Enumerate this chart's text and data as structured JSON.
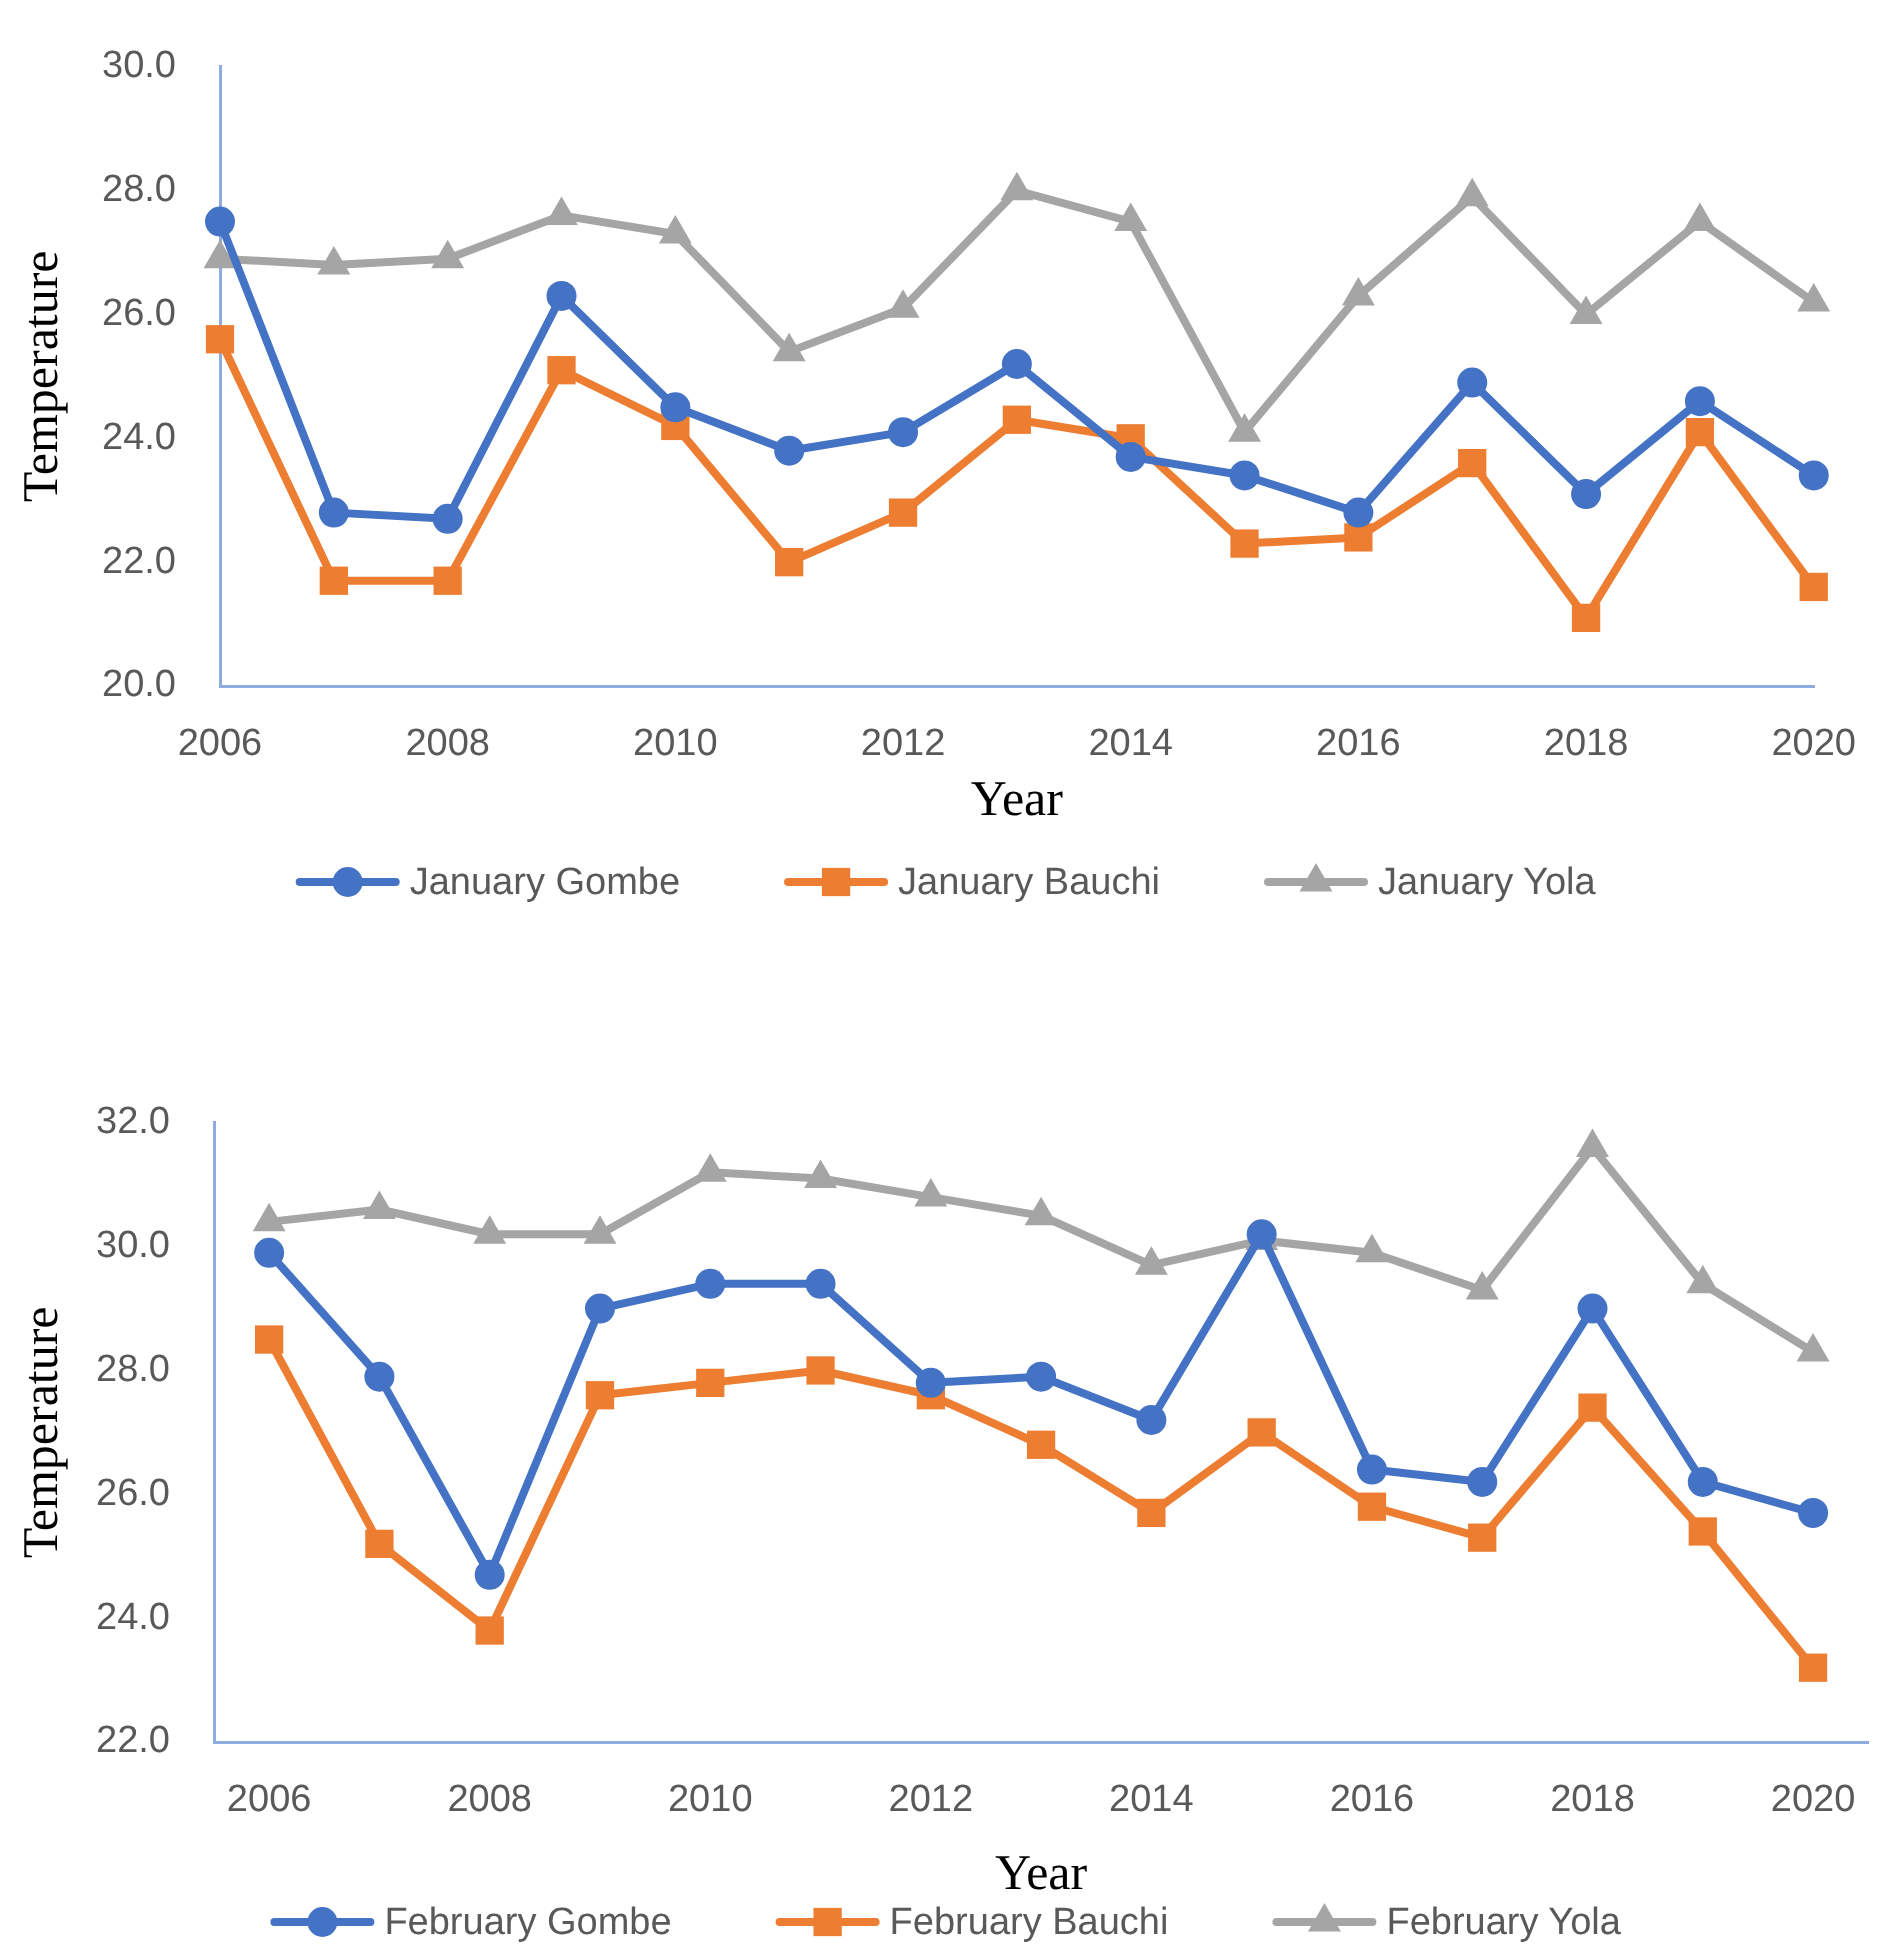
{
  "chart_data": [
    {
      "type": "line",
      "xlabel": "Year",
      "ylabel": "Temperature",
      "x": [
        2006,
        2007,
        2008,
        2009,
        2010,
        2011,
        2012,
        2013,
        2014,
        2015,
        2016,
        2017,
        2018,
        2019,
        2020
      ],
      "xlim": [
        2006,
        2020
      ],
      "xticks": [
        2006,
        2008,
        2010,
        2012,
        2014,
        2016,
        2018,
        2020
      ],
      "ylim": [
        20,
        30
      ],
      "yticks": [
        {
          "value": 20,
          "label": "20.0"
        },
        {
          "value": 22,
          "label": "22.0"
        },
        {
          "value": 24,
          "label": "24.0"
        },
        {
          "value": 26,
          "label": "26.0"
        },
        {
          "value": 28,
          "label": "28.0"
        },
        {
          "value": 30,
          "label": "30.0"
        }
      ],
      "grid": false,
      "legend": "bottom",
      "line_style": "solid",
      "series": [
        {
          "name": "January Gombe",
          "color": "#4472c4",
          "marker": "circle",
          "values": [
            27.5,
            22.8,
            22.7,
            26.3,
            24.5,
            23.8,
            24.1,
            25.2,
            23.7,
            23.4,
            22.8,
            24.9,
            23.1,
            24.6,
            23.4
          ]
        },
        {
          "name": "January Bauchi",
          "color": "#ed7d31",
          "marker": "square",
          "values": [
            25.6,
            21.7,
            21.7,
            25.1,
            24.2,
            22.0,
            22.8,
            24.3,
            24.0,
            22.3,
            22.4,
            23.6,
            21.1,
            24.1,
            21.6
          ]
        },
        {
          "name": "January Yola",
          "color": "#a5a5a5",
          "marker": "triangle",
          "values": [
            26.9,
            26.8,
            26.9,
            27.6,
            27.3,
            25.4,
            26.1,
            28.0,
            27.5,
            24.1,
            26.3,
            27.9,
            26.0,
            27.5,
            26.2
          ]
        }
      ]
    },
    {
      "type": "line",
      "xlabel": "Year",
      "ylabel": "Temperature",
      "x": [
        2006,
        2007,
        2008,
        2009,
        2010,
        2011,
        2012,
        2013,
        2014,
        2015,
        2016,
        2017,
        2018,
        2019,
        2020
      ],
      "xlim": [
        2005.5,
        2020.5
      ],
      "xticks": [
        2006,
        2008,
        2010,
        2012,
        2014,
        2016,
        2018,
        2020
      ],
      "ylim": [
        22,
        32
      ],
      "yticks": [
        {
          "value": 22,
          "label": "22.0"
        },
        {
          "value": 24,
          "label": "24.0"
        },
        {
          "value": 26,
          "label": "26.0"
        },
        {
          "value": 28,
          "label": "28.0"
        },
        {
          "value": 30,
          "label": "30.0"
        },
        {
          "value": 32,
          "label": "32.0"
        }
      ],
      "grid": false,
      "legend": "bottom",
      "line_style": "solid",
      "series": [
        {
          "name": "February Gombe",
          "color": "#4472c4",
          "marker": "circle",
          "values": [
            29.9,
            27.9,
            24.7,
            29.0,
            29.4,
            29.4,
            27.8,
            27.9,
            27.2,
            30.2,
            26.4,
            26.2,
            29.0,
            26.2,
            25.7
          ]
        },
        {
          "name": "February Bauchi",
          "color": "#ed7d31",
          "marker": "square",
          "values": [
            28.5,
            25.2,
            23.8,
            27.6,
            27.8,
            28.0,
            27.6,
            26.8,
            25.7,
            27.0,
            25.8,
            25.3,
            27.4,
            25.4,
            23.2
          ]
        },
        {
          "name": "February Yola",
          "color": "#a5a5a5",
          "marker": "triangle",
          "values": [
            30.4,
            30.6,
            30.2,
            30.2,
            31.2,
            31.1,
            30.8,
            30.5,
            29.7,
            30.1,
            29.9,
            29.3,
            31.6,
            29.4,
            28.3
          ]
        }
      ]
    }
  ]
}
